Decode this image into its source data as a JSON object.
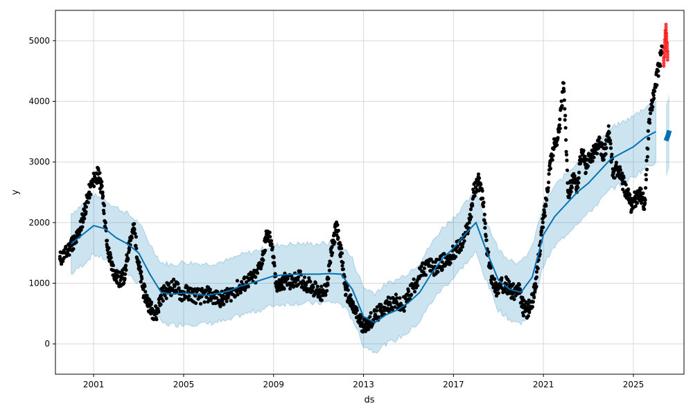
{
  "chart_data": {
    "type": "scatter",
    "xlabel": "ds",
    "ylabel": "y",
    "xlim": [
      1999.3,
      2027.25
    ],
    "ylim": [
      -500,
      5500
    ],
    "x_ticks": [
      {
        "value": 2001,
        "label": "2001"
      },
      {
        "value": 2005,
        "label": "2005"
      },
      {
        "value": 2009,
        "label": "2009"
      },
      {
        "value": 2013,
        "label": "2013"
      },
      {
        "value": 2017,
        "label": "2017"
      },
      {
        "value": 2021,
        "label": "2021"
      },
      {
        "value": 2025,
        "label": "2025"
      }
    ],
    "y_ticks": [
      {
        "value": 0,
        "label": "0"
      },
      {
        "value": 1000,
        "label": "1000"
      },
      {
        "value": 2000,
        "label": "2000"
      },
      {
        "value": 3000,
        "label": "3000"
      },
      {
        "value": 4000,
        "label": "4000"
      },
      {
        "value": 5000,
        "label": "5000"
      }
    ],
    "grid": true,
    "colors": {
      "observed": "#000000",
      "forecast": "#0072B2",
      "band": "#0072B2",
      "outliers": "#ff2020"
    },
    "forecast": {
      "x": [
        2000.0,
        2000.5,
        2001.0,
        2001.5,
        2002.0,
        2002.5,
        2003.0,
        2003.5,
        2004.0,
        2004.5,
        2005.0,
        2005.5,
        2006.0,
        2006.5,
        2007.0,
        2007.5,
        2008.0,
        2008.5,
        2009.0,
        2009.5,
        2010.0,
        2010.5,
        2011.0,
        2011.5,
        2012.0,
        2012.5,
        2013.0,
        2013.5,
        2014.0,
        2014.5,
        2015.0,
        2015.5,
        2016.0,
        2016.5,
        2017.0,
        2017.5,
        2018.0,
        2018.5,
        2019.0,
        2019.5,
        2020.0,
        2020.5,
        2021.0,
        2021.5,
        2022.0,
        2022.5,
        2023.0,
        2023.5,
        2024.0,
        2024.5,
        2025.0,
        2025.5,
        2026.0
      ],
      "yhat": [
        1650,
        1800,
        1950,
        1900,
        1750,
        1650,
        1500,
        1150,
        850,
        820,
        840,
        820,
        800,
        830,
        870,
        950,
        1000,
        1060,
        1120,
        1140,
        1150,
        1150,
        1150,
        1160,
        1150,
        900,
        450,
        350,
        480,
        560,
        680,
        850,
        1150,
        1400,
        1580,
        1800,
        2000,
        1500,
        1050,
        900,
        850,
        1100,
        1800,
        2100,
        2300,
        2500,
        2650,
        2850,
        3050,
        3150,
        3250,
        3400,
        3500
      ],
      "yhat_lower": [
        1150,
        1300,
        1480,
        1400,
        1250,
        1150,
        1000,
        650,
        350,
        310,
        330,
        330,
        330,
        360,
        380,
        470,
        520,
        570,
        640,
        660,
        670,
        670,
        670,
        690,
        660,
        420,
        -30,
        -130,
        0,
        80,
        200,
        370,
        680,
        910,
        1090,
        1310,
        1500,
        1000,
        560,
        400,
        330,
        600,
        1300,
        1600,
        1800,
        2000,
        2150,
        2350,
        2550,
        2650,
        2750,
        2900,
        3000
      ],
      "yhat_upper": [
        2150,
        2300,
        2450,
        2380,
        2250,
        2150,
        2000,
        1650,
        1340,
        1300,
        1350,
        1330,
        1320,
        1340,
        1380,
        1460,
        1510,
        1570,
        1620,
        1640,
        1650,
        1650,
        1650,
        1660,
        1650,
        1400,
        930,
        840,
        980,
        1060,
        1180,
        1340,
        1640,
        1910,
        2080,
        2300,
        2500,
        2000,
        1550,
        1400,
        1330,
        1600,
        2300,
        2600,
        2800,
        3000,
        3150,
        3350,
        3550,
        3650,
        3750,
        3900,
        4000
      ]
    },
    "forecast_tail": {
      "x": [
        2026.45,
        2026.5,
        2026.55,
        2026.6
      ],
      "yhat": [
        3350,
        3400,
        3450,
        3520
      ],
      "spread": 150
    },
    "observed": {
      "x": [
        1999.5,
        1999.8,
        2000.0,
        2000.2,
        2000.4,
        2000.6,
        2000.8,
        2001.0,
        2001.2,
        2001.4,
        2001.6,
        2001.8,
        2002.0,
        2002.2,
        2002.4,
        2002.6,
        2002.8,
        2003.0,
        2003.2,
        2003.4,
        2003.6,
        2003.8,
        2004.0,
        2004.3,
        2004.6,
        2004.9,
        2005.2,
        2005.5,
        2005.8,
        2006.1,
        2006.4,
        2006.7,
        2007.0,
        2007.3,
        2007.6,
        2007.9,
        2008.2,
        2008.5,
        2008.7,
        2008.9,
        2009.1,
        2009.3,
        2009.5,
        2009.8,
        2010.1,
        2010.4,
        2010.7,
        2011.0,
        2011.2,
        2011.4,
        2011.6,
        2011.8,
        2012.0,
        2012.2,
        2012.4,
        2012.6,
        2012.8,
        2013.0,
        2013.2,
        2013.5,
        2013.8,
        2014.1,
        2014.4,
        2014.7,
        2015.0,
        2015.3,
        2015.6,
        2015.9,
        2016.2,
        2016.5,
        2016.8,
        2017.1,
        2017.4,
        2017.7,
        2017.9,
        2018.1,
        2018.3,
        2018.5,
        2018.7,
        2018.9,
        2019.1,
        2019.3,
        2019.5,
        2019.7,
        2019.9,
        2020.1,
        2020.3,
        2020.5,
        2020.7,
        2020.9,
        2021.1,
        2021.3,
        2021.5,
        2021.7,
        2021.9,
        2022.1,
        2022.3,
        2022.5,
        2022.7,
        2022.9,
        2023.1,
        2023.3,
        2023.5,
        2023.7,
        2023.9,
        2024.1,
        2024.3,
        2024.5,
        2024.7,
        2024.9,
        2025.1,
        2025.3,
        2025.5,
        2025.7,
        2025.9,
        2026.1,
        2026.3
      ],
      "y": [
        1400,
        1500,
        1650,
        1700,
        1900,
        2200,
        2500,
        2700,
        2800,
        2500,
        1600,
        1300,
        1100,
        1050,
        1150,
        1700,
        1900,
        1300,
        900,
        700,
        550,
        500,
        800,
        900,
        950,
        820,
        850,
        800,
        780,
        820,
        760,
        740,
        800,
        900,
        950,
        1050,
        1100,
        1400,
        1800,
        1700,
        1000,
        950,
        1050,
        1000,
        1100,
        1000,
        950,
        850,
        800,
        1000,
        1600,
        1950,
        1500,
        900,
        700,
        550,
        400,
        300,
        350,
        450,
        550,
        650,
        700,
        600,
        800,
        1000,
        1200,
        1300,
        1250,
        1350,
        1400,
        1550,
        1650,
        2000,
        2500,
        2700,
        2400,
        1500,
        1100,
        900,
        950,
        1000,
        900,
        850,
        900,
        600,
        550,
        700,
        1100,
        1800,
        2300,
        3000,
        3300,
        3500,
        4300,
        2500,
        2700,
        2600,
        3200,
        2900,
        3100,
        3200,
        3300,
        3100,
        3500,
        2800,
        2900,
        2700,
        2500,
        2300,
        2400,
        2500,
        2300,
        3700,
        4100,
        4500,
        4900
      ]
    },
    "outliers": {
      "x": [
        2026.35,
        2026.38,
        2026.4,
        2026.42,
        2026.45,
        2026.47,
        2026.5,
        2026.52
      ],
      "y": [
        4650,
        4800,
        4950,
        5100,
        5200,
        5050,
        4900,
        4750
      ]
    }
  }
}
